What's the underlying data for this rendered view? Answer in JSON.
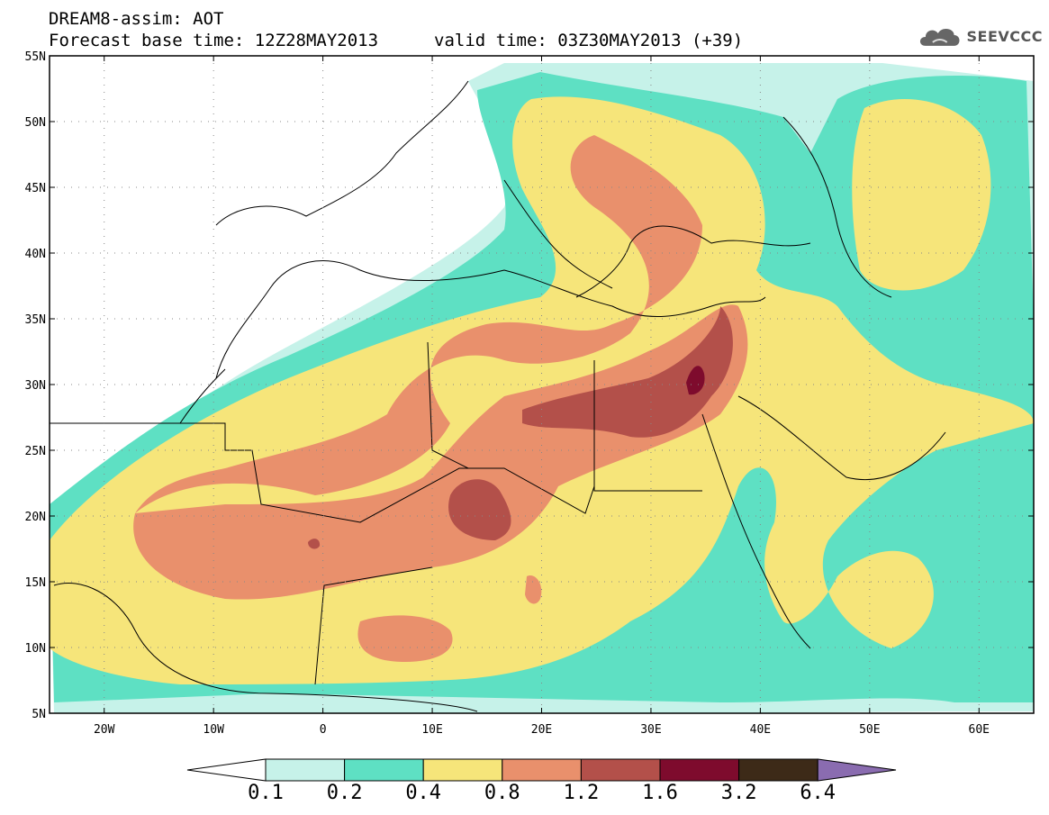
{
  "header": {
    "line1": "DREAM8-assim: AOT",
    "line2": "Forecast base time: 12Z28MAY2013",
    "valid": "valid time: 03Z30MAY2013 (+39)"
  },
  "logo": {
    "icon": "cloud-icon",
    "text": "SEEVCCC"
  },
  "map": {
    "lat_labels": [
      "55N",
      "50N",
      "45N",
      "40N",
      "35N",
      "30N",
      "25N",
      "20N",
      "15N",
      "10N",
      "5N"
    ],
    "lon_labels": [
      "20W",
      "10W",
      "0",
      "10E",
      "20E",
      "30E",
      "40E",
      "50E",
      "60E"
    ],
    "lat_range": [
      5,
      55
    ],
    "lon_range": [
      -25,
      65
    ],
    "grid": "dotted"
  },
  "colorbar": {
    "labels": [
      "0.1",
      "0.2",
      "0.4",
      "0.8",
      "1.2",
      "1.6",
      "3.2",
      "6.4"
    ],
    "colors": [
      "#ffffff",
      "#c6f2e9",
      "#5ee0c3",
      "#f6e57a",
      "#e9906c",
      "#b3504a",
      "#7e0b2d",
      "#3d2a18",
      "#8a6cb0"
    ]
  }
}
